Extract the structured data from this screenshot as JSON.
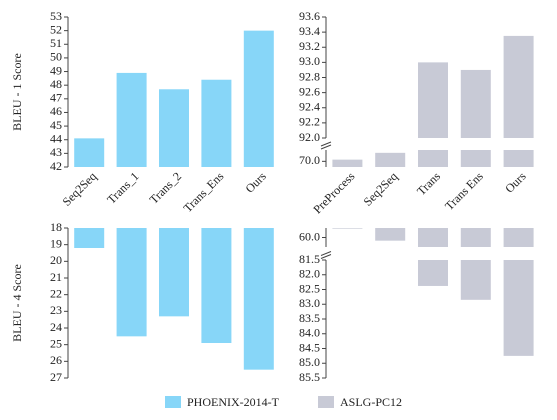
{
  "chart_data": [
    {
      "type": "bar",
      "ylabel": "BLEU - 1 Score",
      "categories": [
        "Seq2Seq",
        "Trans_1",
        "Trans_2",
        "Trans_Ens",
        "Ours"
      ],
      "values": [
        44.1,
        48.9,
        47.7,
        48.4,
        52.0
      ],
      "color": "#87d6f8",
      "ylim": [
        42,
        53
      ],
      "yticks": [
        42,
        43,
        44,
        45,
        46,
        47,
        48,
        49,
        50,
        51,
        52,
        53
      ]
    },
    {
      "type": "bar",
      "categories": [
        "PreProcess",
        "Seq2Seq",
        "Trans",
        "Trans Ens",
        "Ours"
      ],
      "values": [
        70.03,
        70.15,
        93.0,
        92.9,
        93.35
      ],
      "color": "#c8cad6",
      "segments": [
        {
          "ylim": [
            69.9,
            70.2
          ],
          "yticks": [
            {
              "value": 70,
              "label": "70.0"
            }
          ]
        },
        {
          "ylim": [
            92.0,
            93.6
          ],
          "yticks": [
            {
              "value": 92,
              "label": "92.0"
            },
            92.2,
            92.4,
            92.6,
            92.8,
            {
              "value": 93,
              "label": "93.0"
            },
            93.2,
            93.4,
            93.6
          ]
        }
      ]
    },
    {
      "type": "bar",
      "ylabel": "BLEU - 4 Score",
      "inverted": true,
      "categories": [
        null,
        null,
        null,
        null,
        null
      ],
      "values": [
        19.2,
        24.5,
        23.3,
        24.9,
        26.5
      ],
      "color": "#87d6f8",
      "ylim": [
        18,
        27
      ],
      "yticks": [
        18,
        19,
        20,
        21,
        22,
        23,
        24,
        25,
        26,
        27
      ]
    },
    {
      "type": "bar",
      "inverted": true,
      "categories": [
        null,
        null,
        null,
        null,
        null
      ],
      "values": [
        59.72,
        60.1,
        82.38,
        82.85,
        84.75
      ],
      "color": "#c8cad6",
      "segments": [
        {
          "ylim": [
            59.7,
            60.3
          ],
          "yticks": [
            {
              "value": 60,
              "label": "60.0"
            }
          ]
        },
        {
          "ylim": [
            81.5,
            85.5
          ],
          "yticks": [
            81.5,
            {
              "value": 82,
              "label": "82.0"
            },
            82.5,
            {
              "value": 83,
              "label": "83.0"
            },
            83.5,
            {
              "value": 84,
              "label": "84.0"
            },
            84.5,
            {
              "value": 85,
              "label": "85.0"
            },
            85.5
          ]
        }
      ]
    }
  ],
  "legend": [
    {
      "name": "PHOENIX-2014-T",
      "color": "#87d6f8"
    },
    {
      "name": "ASLG-PC12",
      "color": "#c8cad6"
    }
  ]
}
